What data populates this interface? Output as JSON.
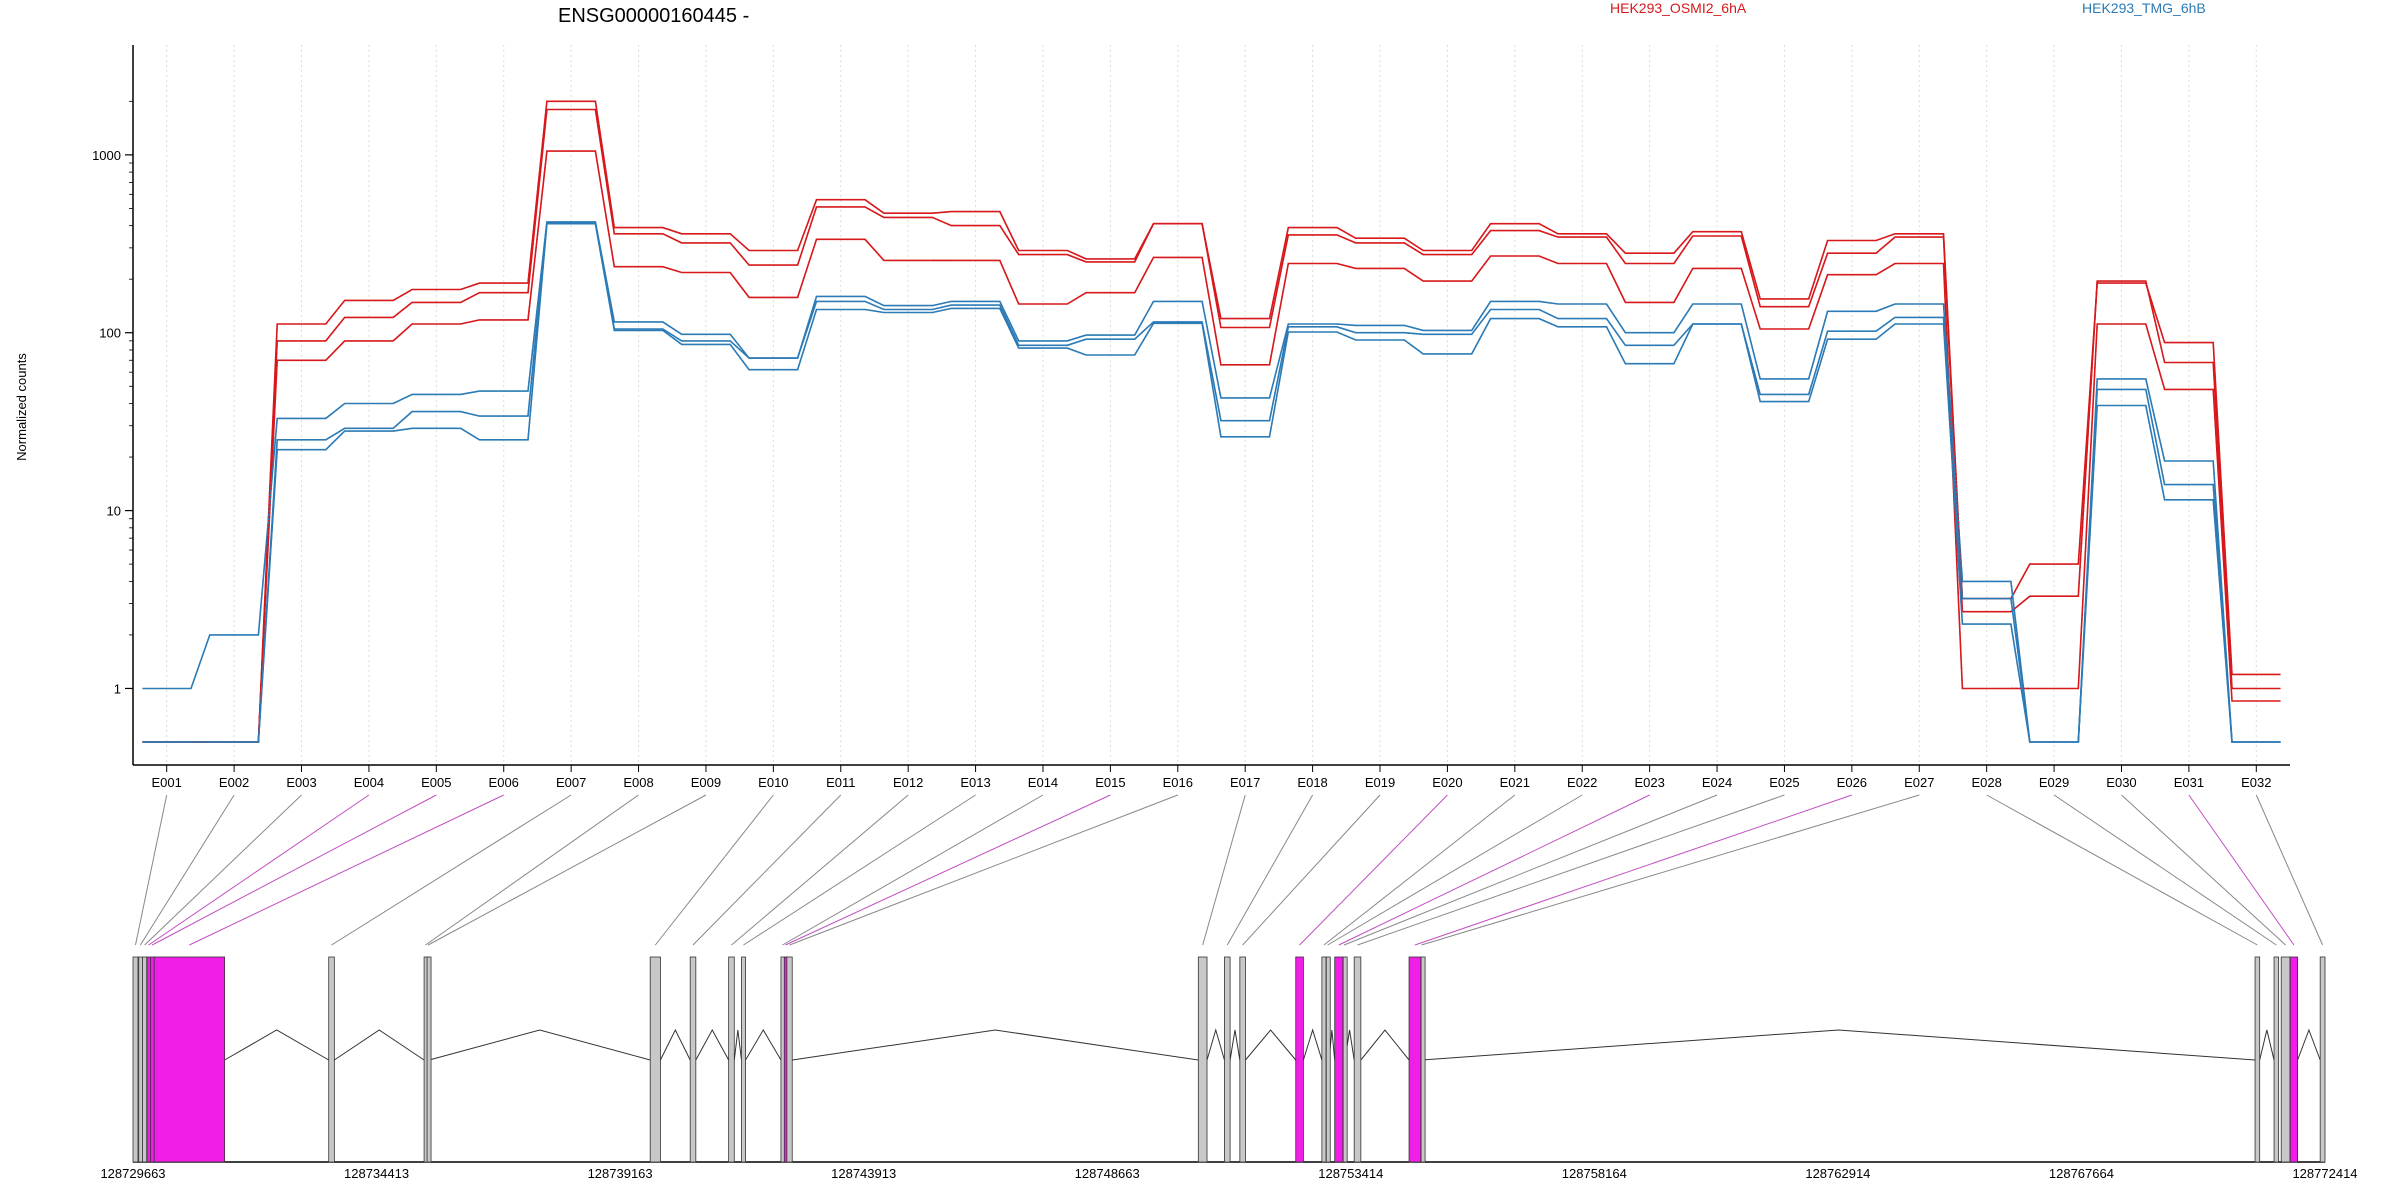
{
  "chart_data": {
    "type": "line",
    "title": "ENSG00000160445 -",
    "ylabel": "Normalized counts",
    "xlabel": "",
    "yscale": "log",
    "ylim": [
      0.5,
      3000
    ],
    "grid": "vertical dotted",
    "legend_placement": "top",
    "y_ticks": [
      1,
      10,
      100,
      1000
    ],
    "y_tick_labels": [
      "1",
      "10",
      "100",
      "1000"
    ],
    "categories": [
      "E001",
      "E002",
      "E003",
      "E004",
      "E005",
      "E006",
      "E007",
      "E008",
      "E009",
      "E010",
      "E011",
      "E012",
      "E013",
      "E014",
      "E015",
      "E016",
      "E017",
      "E018",
      "E019",
      "E020",
      "E021",
      "E022",
      "E023",
      "E024",
      "E025",
      "E026",
      "E027",
      "E028",
      "E029",
      "E030",
      "E031",
      "E032"
    ],
    "series": [
      {
        "name": "HEK293_OSMI2_6hA",
        "color": "#d7191c",
        "values": [
          0.5,
          0.5,
          112,
          152,
          175,
          190,
          2000,
          390,
          360,
          290,
          560,
          470,
          480,
          290,
          260,
          410,
          120,
          390,
          340,
          290,
          410,
          360,
          280,
          370,
          155,
          330,
          360,
          3.2,
          5,
          190,
          88,
          1.2
        ]
      },
      {
        "name": "HEK293_OSMI2_6hA",
        "color": "#d7191c",
        "values": [
          0.5,
          0.5,
          90,
          122,
          148,
          168,
          1800,
          360,
          320,
          240,
          510,
          445,
          400,
          275,
          250,
          410,
          107,
          355,
          320,
          275,
          375,
          345,
          245,
          350,
          140,
          280,
          345,
          2.7,
          3.3,
          195,
          68,
          1.0
        ]
      },
      {
        "name": "HEK293_OSMI2_6hA",
        "color": "#d7191c",
        "values": [
          0.5,
          0.5,
          70,
          90,
          112,
          118,
          1050,
          235,
          218,
          158,
          335,
          255,
          255,
          145,
          168,
          265,
          66,
          245,
          230,
          195,
          270,
          245,
          148,
          230,
          105,
          212,
          245,
          1.0,
          1.0,
          112,
          48,
          0.85
        ]
      },
      {
        "name": "HEK293_TMG_6hB",
        "color": "#2c7bb6",
        "values": [
          1.0,
          2.0,
          33,
          40,
          45,
          47,
          420,
          115,
          98,
          72,
          160,
          142,
          150,
          90,
          97,
          150,
          43,
          112,
          110,
          103,
          150,
          145,
          100,
          145,
          55,
          132,
          145,
          4.0,
          0.5,
          55,
          19,
          0.5
        ]
      },
      {
        "name": "HEK293_TMG_6hB",
        "color": "#2c7bb6",
        "values": [
          0.5,
          0.5,
          25,
          29,
          36,
          34,
          415,
          105,
          90,
          72,
          150,
          135,
          143,
          85,
          92,
          115,
          32,
          108,
          100,
          98,
          135,
          120,
          85,
          112,
          45,
          102,
          122,
          3.2,
          0.5,
          48,
          14,
          0.5
        ]
      },
      {
        "name": "HEK293_TMG_6hB",
        "color": "#2c7bb6",
        "values": [
          0.5,
          0.5,
          22,
          28,
          29,
          25,
          410,
          103,
          86,
          62,
          135,
          130,
          137,
          82,
          75,
          113,
          26,
          101,
          91,
          76,
          120,
          108,
          67,
          112,
          41,
          92,
          112,
          2.3,
          0.5,
          39,
          11.5,
          0.5
        ]
      }
    ],
    "legend": [
      {
        "label": "HEK293_OSMI2_6hA",
        "color": "#d7191c"
      },
      {
        "label": "HEK293_TMG_6hB",
        "color": "#2c7bb6"
      }
    ],
    "genomic_axis": {
      "tick_labels": [
        "128729663",
        "128734413",
        "128739163",
        "128743913",
        "128748663",
        "128753414",
        "128758164",
        "128762914",
        "128767664",
        "128772414"
      ],
      "range": [
        128729663,
        128772414
      ]
    },
    "exon_highlight_color": "#f01ee6",
    "exon_normal_color": "#c8c8c8",
    "exons": [
      {
        "id": "E001",
        "start": 128729663,
        "end": 128729760,
        "highlight": false
      },
      {
        "id": "E002",
        "start": 128729775,
        "end": 128729840,
        "highlight": false
      },
      {
        "id": "E003",
        "start": 128729850,
        "end": 128729930,
        "highlight": false
      },
      {
        "id": "E004",
        "start": 128729935,
        "end": 128730000,
        "highlight": true
      },
      {
        "id": "E005",
        "start": 128730005,
        "end": 128730070,
        "highlight": true
      },
      {
        "id": "E006",
        "start": 128730075,
        "end": 128731450,
        "highlight": true
      },
      {
        "id": "E007",
        "start": 128733480,
        "end": 128733590,
        "highlight": false
      },
      {
        "id": "E008",
        "start": 128735340,
        "end": 128735395,
        "highlight": false
      },
      {
        "id": "E009",
        "start": 128735398,
        "end": 128735440,
        "highlight": false
      },
      {
        "id": "E010",
        "start": 128739750,
        "end": 128739950,
        "highlight": false
      },
      {
        "id": "E011",
        "start": 128740530,
        "end": 128740640,
        "highlight": false
      },
      {
        "id": "E012",
        "start": 128741280,
        "end": 128741390,
        "highlight": false
      },
      {
        "id": "E013",
        "start": 128741530,
        "end": 128741610,
        "highlight": false
      },
      {
        "id": "E014",
        "start": 128742300,
        "end": 128742360,
        "highlight": false
      },
      {
        "id": "E015",
        "start": 128742365,
        "end": 128742410,
        "highlight": true
      },
      {
        "id": "E016",
        "start": 128742415,
        "end": 128742520,
        "highlight": false
      },
      {
        "id": "E017",
        "start": 128750440,
        "end": 128750610,
        "highlight": false
      },
      {
        "id": "E018",
        "start": 128750950,
        "end": 128751060,
        "highlight": false
      },
      {
        "id": "E019",
        "start": 128751250,
        "end": 128751360,
        "highlight": false
      },
      {
        "id": "E020",
        "start": 128752340,
        "end": 128752490,
        "highlight": true
      },
      {
        "id": "E021",
        "start": 128752850,
        "end": 128752930,
        "highlight": false
      },
      {
        "id": "E022",
        "start": 128752935,
        "end": 128752990,
        "highlight": false
      },
      {
        "id": "E023",
        "start": 128753100,
        "end": 128753260,
        "highlight": true
      },
      {
        "id": "E024",
        "start": 128753265,
        "end": 128753300,
        "highlight": false
      },
      {
        "id": "E025",
        "start": 128753480,
        "end": 128753610,
        "highlight": false
      },
      {
        "id": "E026",
        "start": 128754550,
        "end": 128754780,
        "highlight": true
      },
      {
        "id": "E027",
        "start": 128754785,
        "end": 128754800,
        "highlight": false
      },
      {
        "id": "E028",
        "start": 128771050,
        "end": 128771140,
        "highlight": false
      },
      {
        "id": "E029",
        "start": 128771420,
        "end": 128771510,
        "highlight": false
      },
      {
        "id": "E030",
        "start": 128771560,
        "end": 128771730,
        "highlight": false
      },
      {
        "id": "E031",
        "start": 128771735,
        "end": 128771880,
        "highlight": true
      },
      {
        "id": "E032",
        "start": 128772320,
        "end": 128772414,
        "highlight": false
      }
    ]
  }
}
